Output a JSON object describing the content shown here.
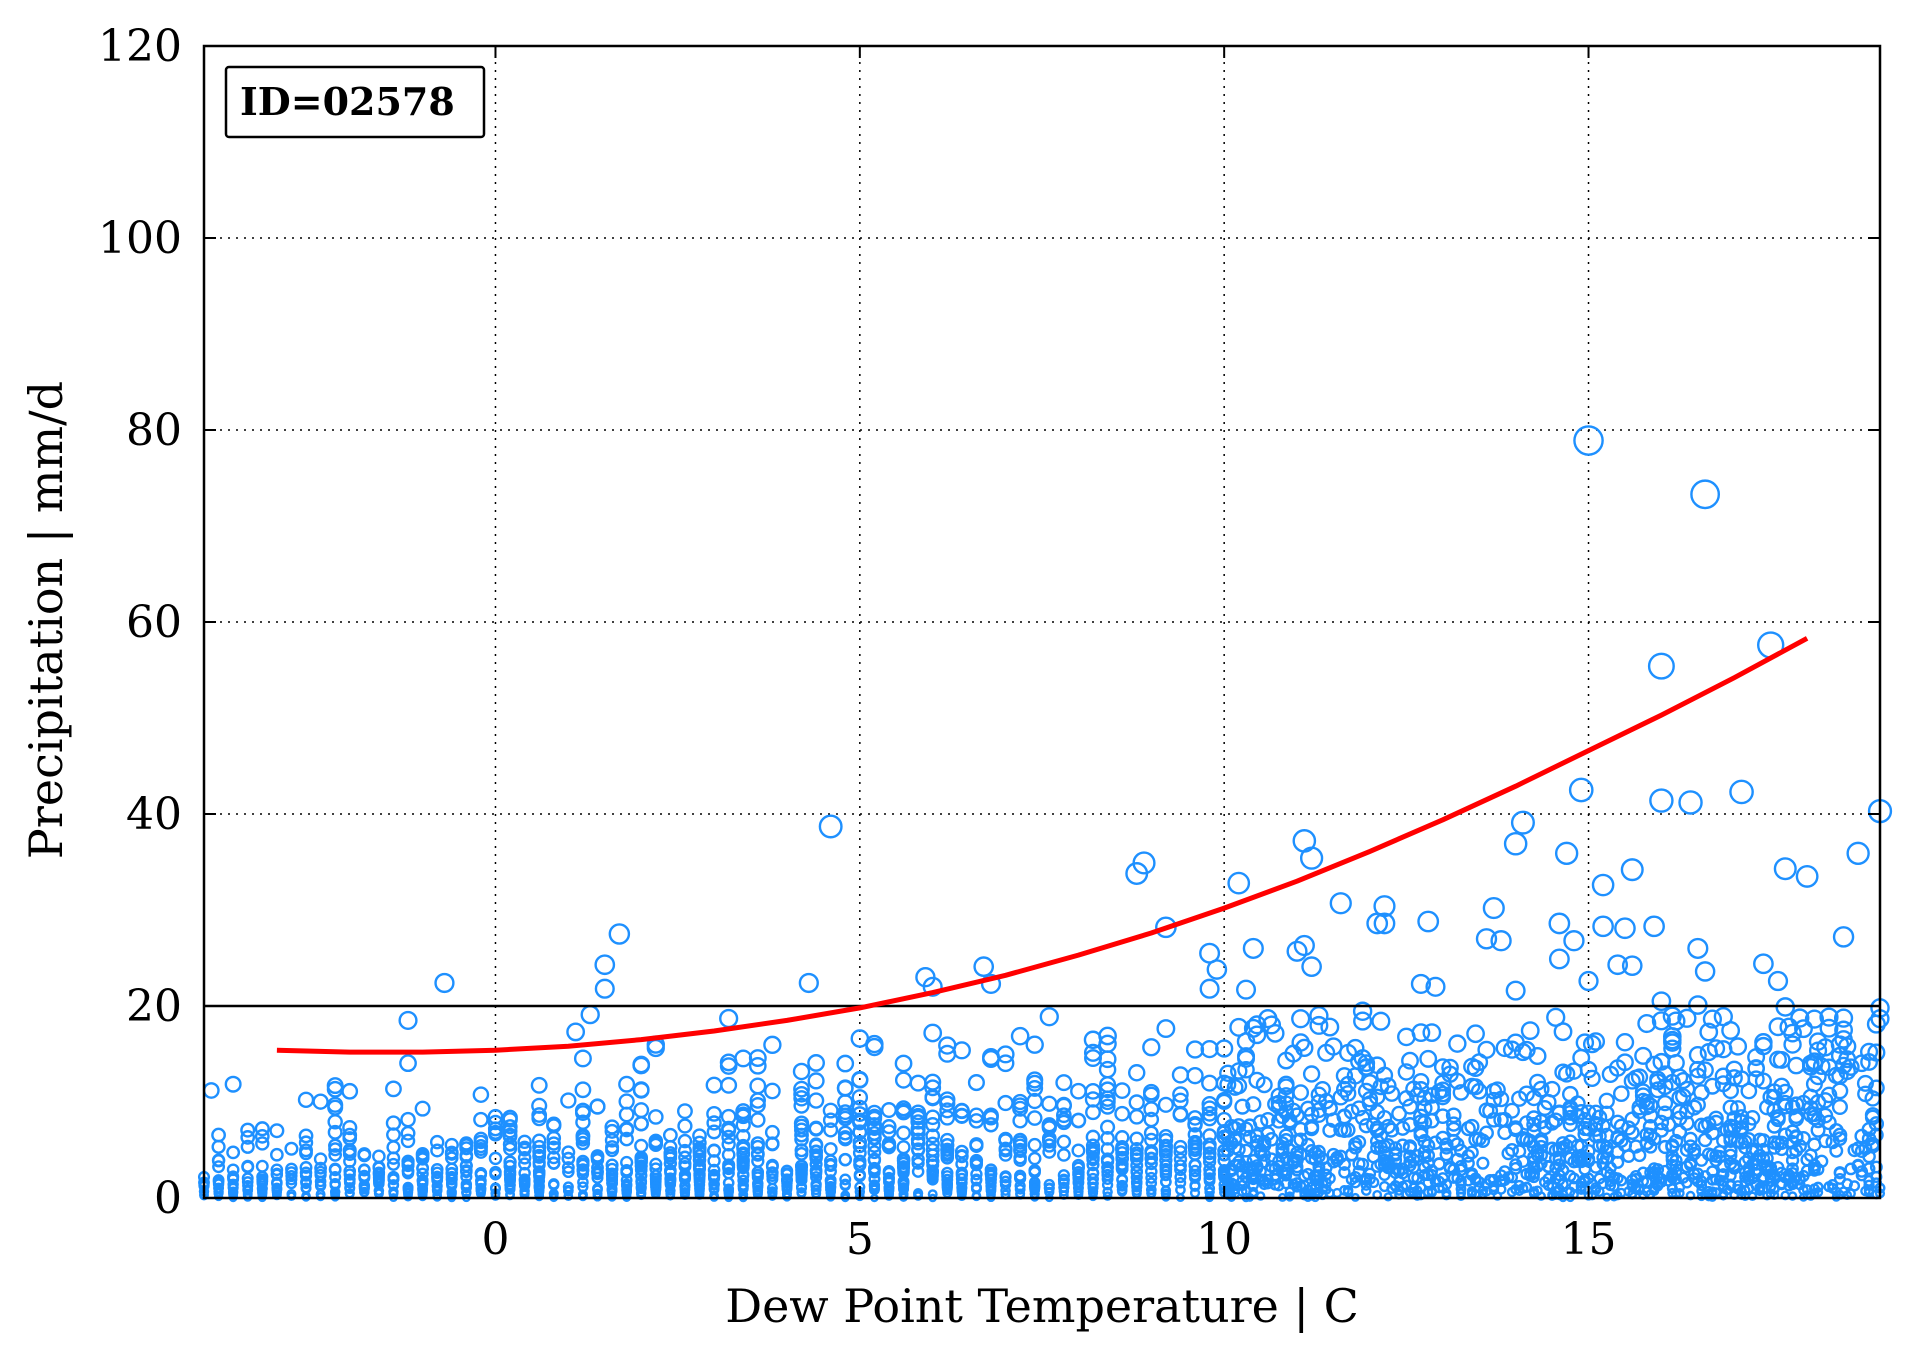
{
  "chart_data": {
    "type": "scatter",
    "xlabel": "Dew Point Temperature | C",
    "ylabel": "Precipitation | mm/d",
    "xlim": [
      -4,
      19
    ],
    "ylim": [
      0,
      120
    ],
    "xticks": [
      0,
      5,
      10,
      15
    ],
    "yticks": [
      0,
      20,
      40,
      60,
      80,
      100,
      120
    ],
    "grid": true,
    "annotation": "ID=02578",
    "reference_line": {
      "y": 20,
      "color": "#000000"
    },
    "colors": {
      "points": "#1E90FF",
      "fit": "#FF0000"
    },
    "fit_curve": {
      "color": "#FF0000",
      "x": [
        -3,
        -2,
        -1,
        0,
        1,
        2,
        3,
        4,
        5,
        6,
        7,
        8,
        9,
        10,
        11,
        12,
        13,
        14,
        15,
        16,
        17,
        18
      ],
      "y": [
        15.4,
        15.2,
        15.2,
        15.4,
        15.8,
        16.5,
        17.4,
        18.5,
        19.8,
        21.4,
        23.2,
        25.3,
        27.6,
        30.2,
        33.0,
        36.1,
        39.4,
        42.9,
        46.6,
        50.3,
        54.2,
        58.3
      ]
    },
    "outliers": [
      {
        "x": -3.9,
        "y": 11.2
      },
      {
        "x": -1.2,
        "y": 18.5
      },
      {
        "x": -0.7,
        "y": 22.4
      },
      {
        "x": 1.1,
        "y": 17.3
      },
      {
        "x": 1.3,
        "y": 19.1
      },
      {
        "x": 1.5,
        "y": 24.3
      },
      {
        "x": 1.5,
        "y": 21.8
      },
      {
        "x": 1.7,
        "y": 27.5
      },
      {
        "x": 3.2,
        "y": 18.7
      },
      {
        "x": 4.3,
        "y": 22.4
      },
      {
        "x": 4.6,
        "y": 38.7
      },
      {
        "x": 5.9,
        "y": 23.0
      },
      {
        "x": 6.0,
        "y": 22.0
      },
      {
        "x": 6.7,
        "y": 24.1
      },
      {
        "x": 6.8,
        "y": 22.3
      },
      {
        "x": 8.8,
        "y": 33.8
      },
      {
        "x": 8.9,
        "y": 34.9
      },
      {
        "x": 9.2,
        "y": 28.2
      },
      {
        "x": 9.8,
        "y": 25.5
      },
      {
        "x": 9.9,
        "y": 23.8
      },
      {
        "x": 9.8,
        "y": 21.8
      },
      {
        "x": 10.2,
        "y": 32.8
      },
      {
        "x": 10.4,
        "y": 26.0
      },
      {
        "x": 10.3,
        "y": 21.7
      },
      {
        "x": 11.1,
        "y": 37.2
      },
      {
        "x": 11.2,
        "y": 35.4
      },
      {
        "x": 11.1,
        "y": 26.3
      },
      {
        "x": 11.2,
        "y": 24.1
      },
      {
        "x": 11.0,
        "y": 25.7
      },
      {
        "x": 11.6,
        "y": 30.7
      },
      {
        "x": 12.2,
        "y": 30.4
      },
      {
        "x": 12.1,
        "y": 28.6
      },
      {
        "x": 12.2,
        "y": 28.6
      },
      {
        "x": 12.8,
        "y": 28.8
      },
      {
        "x": 12.7,
        "y": 22.3
      },
      {
        "x": 12.9,
        "y": 22.0
      },
      {
        "x": 13.7,
        "y": 30.2
      },
      {
        "x": 13.6,
        "y": 27.0
      },
      {
        "x": 13.8,
        "y": 26.8
      },
      {
        "x": 14.0,
        "y": 36.9
      },
      {
        "x": 14.1,
        "y": 39.1
      },
      {
        "x": 14.0,
        "y": 21.6
      },
      {
        "x": 14.6,
        "y": 24.9
      },
      {
        "x": 14.7,
        "y": 35.9
      },
      {
        "x": 14.6,
        "y": 28.6
      },
      {
        "x": 14.8,
        "y": 26.8
      },
      {
        "x": 14.9,
        "y": 42.5
      },
      {
        "x": 15.0,
        "y": 78.9
      },
      {
        "x": 15.2,
        "y": 32.6
      },
      {
        "x": 15.2,
        "y": 28.3
      },
      {
        "x": 15.0,
        "y": 22.6
      },
      {
        "x": 15.4,
        "y": 24.3
      },
      {
        "x": 15.5,
        "y": 28.1
      },
      {
        "x": 15.6,
        "y": 24.2
      },
      {
        "x": 15.6,
        "y": 34.2
      },
      {
        "x": 15.9,
        "y": 28.3
      },
      {
        "x": 16.0,
        "y": 55.4
      },
      {
        "x": 16.0,
        "y": 41.4
      },
      {
        "x": 16.0,
        "y": 20.5
      },
      {
        "x": 16.4,
        "y": 41.2
      },
      {
        "x": 16.5,
        "y": 26.0
      },
      {
        "x": 16.6,
        "y": 23.6
      },
      {
        "x": 16.5,
        "y": 20.1
      },
      {
        "x": 16.6,
        "y": 73.3
      },
      {
        "x": 17.1,
        "y": 42.3
      },
      {
        "x": 17.4,
        "y": 24.4
      },
      {
        "x": 17.5,
        "y": 57.6
      },
      {
        "x": 17.6,
        "y": 22.6
      },
      {
        "x": 17.7,
        "y": 34.3
      },
      {
        "x": 17.7,
        "y": 19.9
      },
      {
        "x": 18.0,
        "y": 33.5
      },
      {
        "x": 18.5,
        "y": 27.2
      },
      {
        "x": 18.7,
        "y": 35.9
      },
      {
        "x": 19.0,
        "y": 40.3
      },
      {
        "x": 19.0,
        "y": 19.8
      }
    ],
    "dense_bulk": {
      "description_range_x": [
        -4,
        19
      ],
      "typical_y_range": [
        0,
        20
      ],
      "n_generated": 2600,
      "seed": 2578
    }
  }
}
